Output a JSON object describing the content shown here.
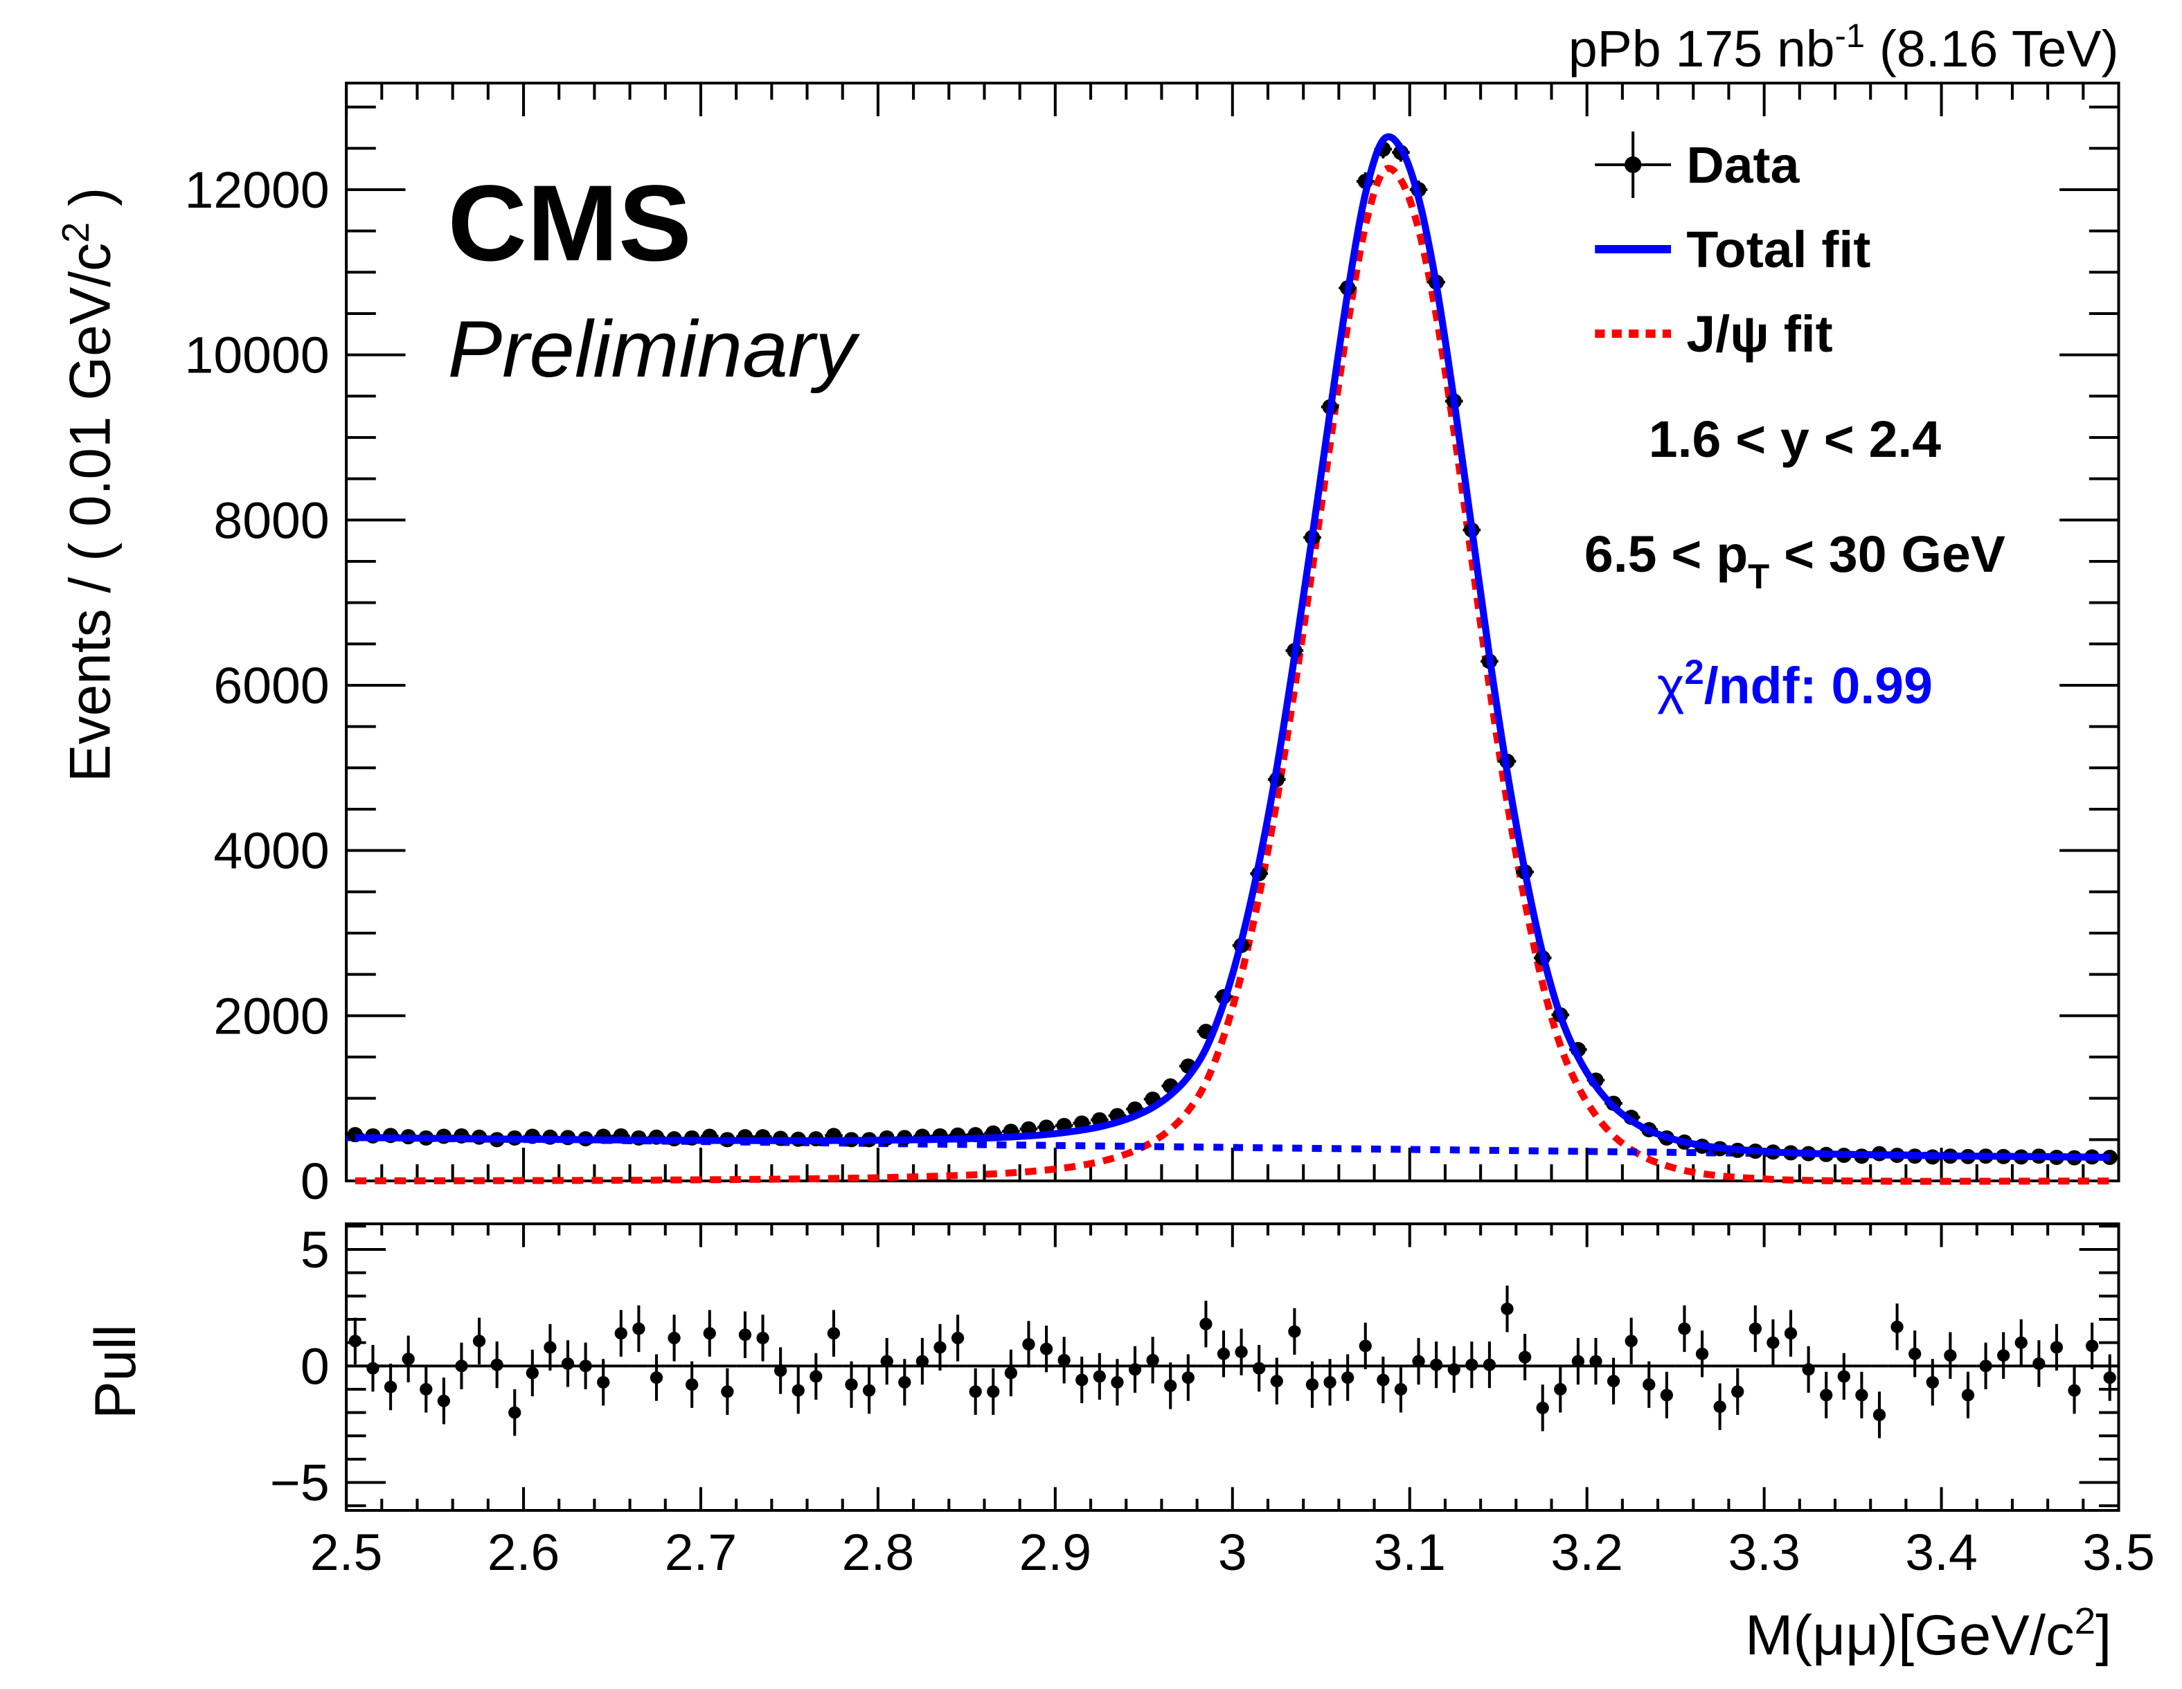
{
  "header": {
    "lumi_main": "pPb 175 nb",
    "lumi_sup": "-1",
    "lumi_energy": " (8.16 TeV)"
  },
  "labels": {
    "cms": "CMS",
    "preliminary": "Preliminary"
  },
  "legend": {
    "data": "Data",
    "total_fit": "Total fit",
    "jpsi_fit": "J/ψ fit"
  },
  "annotations": {
    "rapidity": "1.6 < y < 2.4",
    "pt_pre": "6.5 < p",
    "pt_sub": "T",
    "pt_post": " < 30 GeV",
    "chi_sym": "χ",
    "chi_sup": "2",
    "chi_rest": "/ndf: 0.99"
  },
  "colors": {
    "total_fit": "#0000ff",
    "jpsi_fit": "#ff0000",
    "background": "#0000ff",
    "chi2_text": "#0000ff",
    "data": "#000000"
  },
  "chart_data": {
    "type": "scatter",
    "title": "",
    "x": {
      "range": [
        2.5,
        3.5
      ],
      "bin_width": 0.01,
      "ticks": [
        2.5,
        2.6,
        2.7,
        2.8,
        2.9,
        3,
        3.1,
        3.2,
        3.3,
        3.4,
        3.5
      ],
      "tick_labels": [
        "2.5",
        "2.6",
        "2.7",
        "2.8",
        "2.9",
        "3",
        "3.1",
        "3.2",
        "3.3",
        "3.4",
        "3.5"
      ],
      "label_main": "M(μμ)[GeV/c",
      "label_sup": "2",
      "label_end": "]"
    },
    "main": {
      "ylabel_main": "Events / ( 0.01 GeV/c",
      "ylabel_sup": "2",
      "ylabel_end": " )",
      "ylim": [
        0,
        13290
      ],
      "yticks": [
        0,
        2000,
        4000,
        6000,
        8000,
        10000,
        12000
      ],
      "ytick_labels": [
        "0",
        "2000",
        "4000",
        "6000",
        "8000",
        "10000",
        "12000"
      ],
      "data": [
        560,
        545,
        550,
        535,
        520,
        540,
        545,
        530,
        500,
        520,
        540,
        530,
        525,
        510,
        540,
        545,
        520,
        530,
        510,
        520,
        540,
        500,
        535,
        535,
        515,
        505,
        510,
        550,
        500,
        500,
        520,
        525,
        540,
        545,
        555,
        560,
        580,
        600,
        630,
        650,
        670,
        700,
        740,
        790,
        870,
        990,
        1150,
        1390,
        1810,
        2230,
        2850,
        3720,
        4860,
        6420,
        7790,
        9370,
        10810,
        12100,
        12490,
        12450,
        12000,
        10880,
        9440,
        7880,
        6290,
        5080,
        3740,
        2700,
        2010,
        1590,
        1220,
        940,
        770,
        620,
        520,
        470,
        420,
        390,
        370,
        360,
        350,
        340,
        330,
        320,
        310,
        300,
        330,
        310,
        300,
        290,
        300,
        295,
        300,
        295,
        290,
        300,
        285,
        280,
        290,
        285
      ],
      "total_fit": [
        525,
        523,
        521,
        518,
        516,
        514,
        512,
        510,
        508,
        506,
        504,
        502,
        500,
        499,
        497,
        496,
        494,
        493,
        492,
        491,
        490,
        489,
        489,
        488,
        488,
        488,
        488,
        489,
        490,
        491,
        493,
        496,
        499,
        503,
        508,
        514,
        522,
        532,
        545,
        562,
        585,
        615,
        655,
        710,
        785,
        890,
        1040,
        1260,
        1600,
        2150,
        2900,
        3850,
        5000,
        6350,
        7800,
        9300,
        10750,
        11950,
        12600,
        12500,
        11900,
        10850,
        9450,
        7900,
        6350,
        4950,
        3750,
        2750,
        2000,
        1500,
        1150,
        900,
        730,
        610,
        530,
        470,
        430,
        400,
        380,
        365,
        350,
        340,
        333,
        327,
        322,
        318,
        314,
        311,
        308,
        305,
        303,
        301,
        299,
        297,
        295,
        293,
        291,
        289,
        287,
        285
      ],
      "background_linear": {
        "at_2_5": 525,
        "at_3_5": 285
      }
    },
    "pull": {
      "ylabel": "Pull",
      "ylim": [
        -6.2,
        6.1
      ],
      "yticks": [
        -5,
        0,
        5
      ],
      "ytick_labels": [
        "−5",
        "0",
        "5"
      ],
      "values": [
        1.07,
        -0.1,
        -0.9,
        0.3,
        -1.0,
        -1.5,
        0,
        1.07,
        0.05,
        -2.0,
        -0.3,
        0.8,
        0.1,
        0,
        -0.7,
        1.4,
        1.6,
        -0.5,
        1.2,
        -0.8,
        1.4,
        -1.1,
        1.34,
        1.2,
        -0.2,
        -1.05,
        -0.45,
        1.4,
        -0.8,
        -1.05,
        0.2,
        -0.7,
        0.2,
        0.8,
        1.2,
        -1.1,
        -1.1,
        -0.3,
        0.93,
        0.73,
        0.25,
        -0.6,
        -0.45,
        -0.7,
        -0.15,
        0.25,
        -0.85,
        -0.5,
        1.8,
        0.52,
        0.6,
        -0.1,
        -0.65,
        1.48,
        -0.8,
        -0.7,
        -0.5,
        0.86,
        -0.6,
        -1.0,
        0.2,
        0.05,
        -0.15,
        0.05,
        0.05,
        2.45,
        0.38,
        -1.8,
        -1.0,
        0.2,
        0.2,
        -0.65,
        1.07,
        -0.8,
        -1.25,
        1.6,
        0.52,
        -1.75,
        -1.1,
        1.6,
        1.0,
        1.4,
        -0.15,
        -1.25,
        -0.45,
        -1.25,
        -2.1,
        1.68,
        0.52,
        -0.7,
        0.45,
        -1.25,
        0,
        0.45,
        1.0,
        0.1,
        0.8,
        -1.05,
        0.86,
        -0.5
      ],
      "error": 1.0
    }
  }
}
